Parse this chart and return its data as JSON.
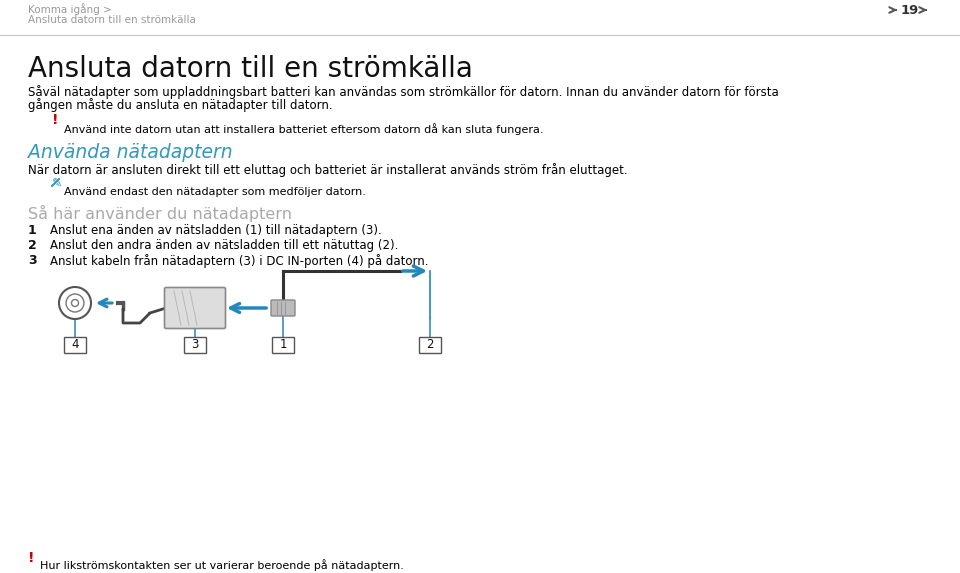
{
  "bg_color": "#ffffff",
  "breadcrumb_line1": "Komma igång >",
  "breadcrumb_line2": "Ansluta datorn till en strömkälla",
  "page_number": "19",
  "main_title": "Ansluta datorn till en strömkälla",
  "intro_line1": "Såväl nätadapter som uppladdningsbart batteri kan användas som strömkällor för datorn. Innan du använder datorn för första",
  "intro_line2": "gången måste du ansluta en nätadapter till datorn.",
  "warning1_sym": "!",
  "warning1_text": "Använd inte datorn utan att installera batteriet eftersom datorn då kan sluta fungera.",
  "section_title": "Använda nätadaptern",
  "section_body": "När datorn är ansluten direkt till ett eluttag och batteriet är installerat används ström från eluttaget.",
  "note_text": "Använd endast den nätadapter som medföljer datorn.",
  "subsection_title": "Så här använder du nätadaptern",
  "step1": "Anslut ena änden av nätsladden (1) till nätadaptern (3).",
  "step2": "Anslut den andra änden av nätsladden till ett nätuttag (2).",
  "step3": "Anslut kabeln från nätadaptern (3) i DC IN-porten (4) på datorn.",
  "footer_sym": "!",
  "footer_text": "Hur likströmskontakten ser ut varierar beroende på nätadaptern.",
  "header_line_color": "#888888",
  "section_title_color": "#3399bb",
  "subsection_title_color": "#aaaaaa",
  "warning_color": "#cc0000",
  "body_color": "#000000",
  "breadcrumb_color": "#999999",
  "arrow_color": "#2288bb",
  "line_color": "#333333",
  "note_color": "#3399bb"
}
